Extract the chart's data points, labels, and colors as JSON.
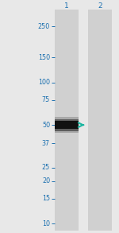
{
  "fig_width": 1.5,
  "fig_height": 2.93,
  "dpi": 100,
  "bg_color": "#e8e8e8",
  "lane_bg_color": "#d0d0d0",
  "band_color": "#111111",
  "text_color": "#1a6faf",
  "arrow_color": "#1ab5a0",
  "lane_labels": [
    "1",
    "2"
  ],
  "mw_markers": [
    250,
    150,
    100,
    75,
    50,
    37,
    25,
    20,
    15,
    10
  ],
  "band_mw": 50,
  "label_fontsize": 5.8,
  "lane_label_fontsize": 6.5
}
